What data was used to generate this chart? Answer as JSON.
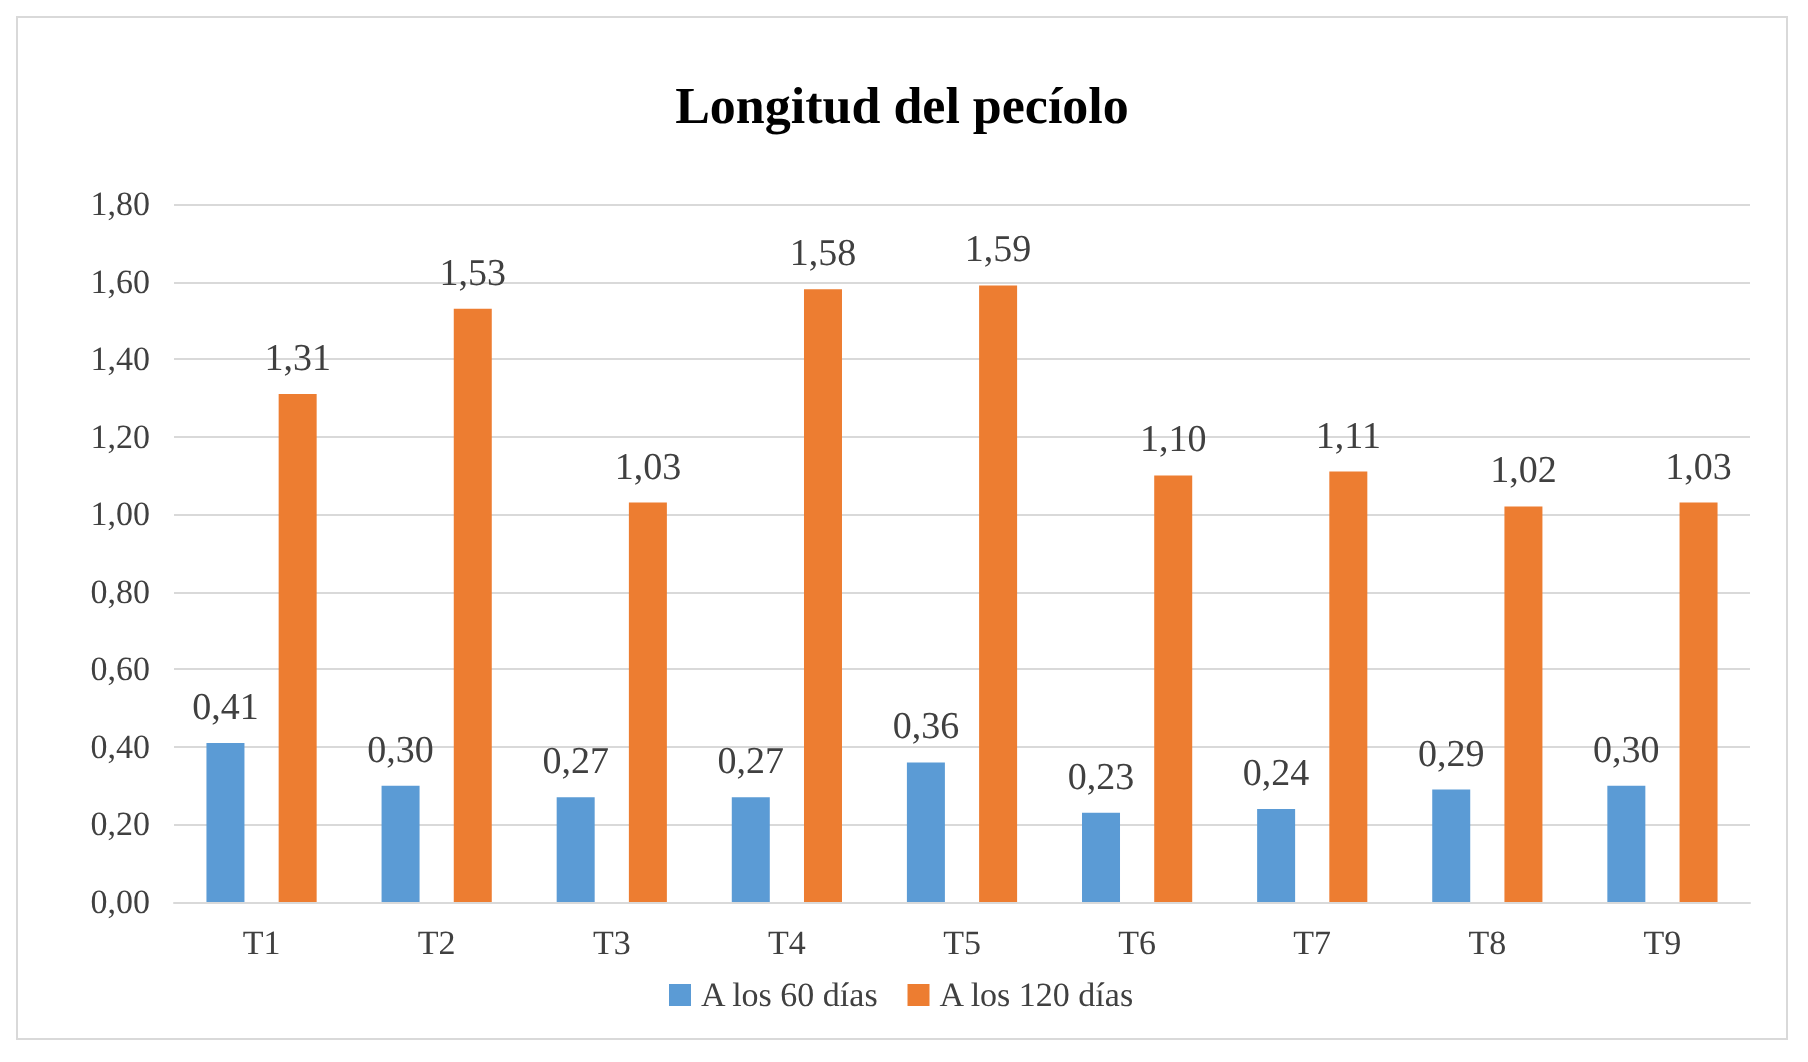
{
  "chart_data": {
    "type": "bar",
    "title": "Longitud del pecíolo",
    "categories": [
      "T1",
      "T2",
      "T3",
      "T4",
      "T5",
      "T6",
      "T7",
      "T8",
      "T9"
    ],
    "series": [
      {
        "name": "A los 60 días",
        "color": "#5b9bd5",
        "values": [
          0.41,
          0.3,
          0.27,
          0.27,
          0.36,
          0.23,
          0.24,
          0.29,
          0.3
        ],
        "value_labels": [
          "0,41",
          "0,30",
          "0,27",
          "0,27",
          "0,36",
          "0,23",
          "0,24",
          "0,29",
          "0,30"
        ]
      },
      {
        "name": "A los 120 días",
        "color": "#ed7d31",
        "values": [
          1.31,
          1.53,
          1.03,
          1.58,
          1.59,
          1.1,
          1.11,
          1.02,
          1.03
        ],
        "value_labels": [
          "1,31",
          "1,53",
          "1,03",
          "1,58",
          "1,59",
          "1,10",
          "1,11",
          "1,02",
          "1,03"
        ]
      }
    ],
    "ylim": [
      0,
      1.8
    ],
    "yticks": [
      {
        "value": 0,
        "label": "0,00"
      },
      {
        "value": 0.2,
        "label": "0,20"
      },
      {
        "value": 0.4,
        "label": "0,40"
      },
      {
        "value": 0.6,
        "label": "0,60"
      },
      {
        "value": 0.8,
        "label": "0,80"
      },
      {
        "value": 1,
        "label": "1,00"
      },
      {
        "value": 1.2,
        "label": "1,20"
      },
      {
        "value": 1.4,
        "label": "1,40"
      },
      {
        "value": 1.6,
        "label": "1,60"
      },
      {
        "value": 1.8,
        "label": "1,80"
      }
    ],
    "grid": "y",
    "legend": "bottom"
  }
}
